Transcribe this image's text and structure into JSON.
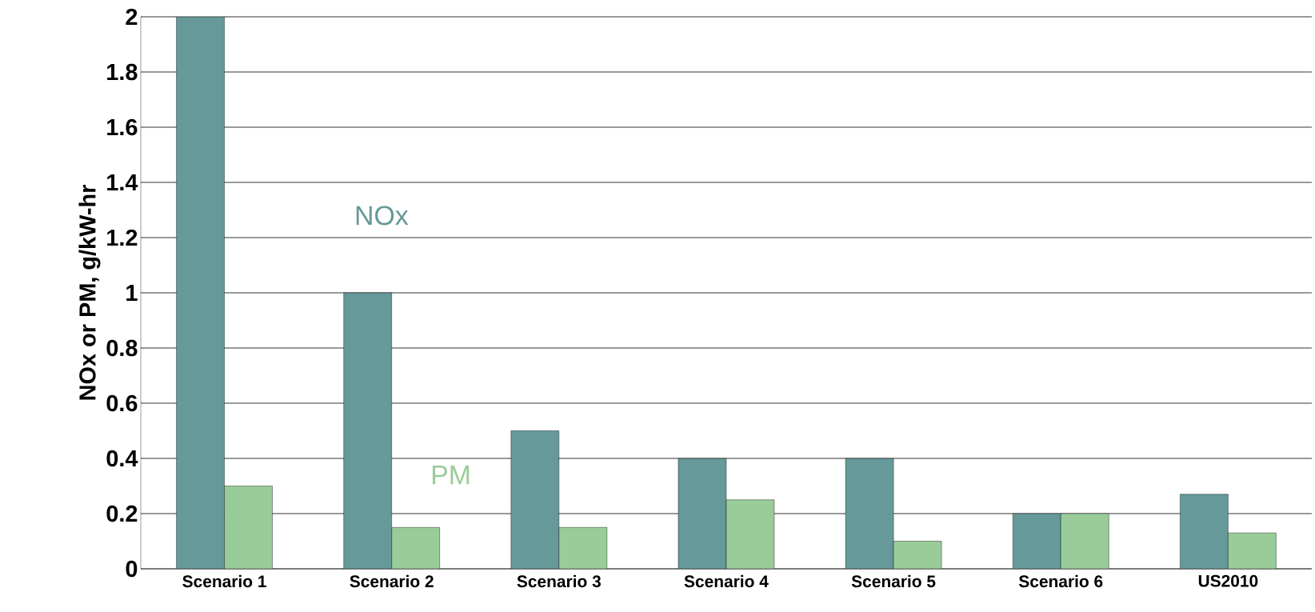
{
  "chart_data": {
    "type": "bar",
    "ylabel": "NOx or PM, g/kW-hr",
    "categories": [
      "Scenario 1",
      "Scenario 2",
      "Scenario 3",
      "Scenario 4",
      "Scenario 5",
      "Scenario 6",
      "US2010"
    ],
    "series": [
      {
        "name": "NOx",
        "color": "#669999",
        "values": [
          2,
          1,
          0.5,
          0.4,
          0.4,
          0.2,
          0.27
        ]
      },
      {
        "name": "PM",
        "color": "#99cc99",
        "values": [
          0.3,
          0.15,
          0.15,
          0.25,
          0.1,
          0.2,
          0.13
        ]
      }
    ],
    "ylim": [
      0,
      2
    ],
    "yticks": [
      0,
      0.2,
      0.4,
      0.6,
      0.8,
      1,
      1.2,
      1.4,
      1.6,
      1.8,
      2
    ],
    "grid": "y"
  }
}
